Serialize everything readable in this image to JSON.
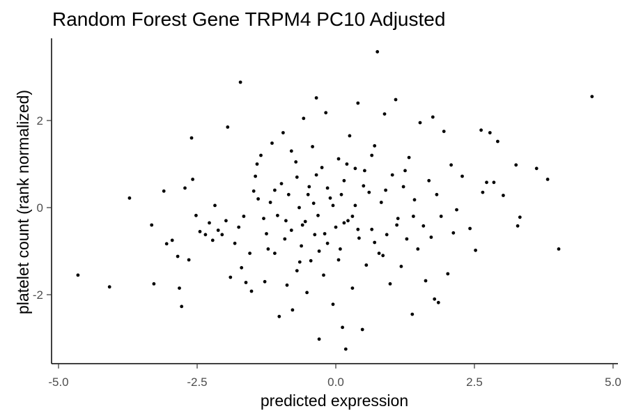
{
  "chart_data": {
    "type": "scatter",
    "title": "Random Forest Gene TRPM4 PC10 Adjusted",
    "xlabel": "predicted expression",
    "ylabel": "platelet count (rank normalized)",
    "xlim": [
      -5.0,
      5.0
    ],
    "ylim": [
      -3.6,
      3.8
    ],
    "x_ticks": [
      -5.0,
      -2.5,
      0.0,
      2.5,
      5.0
    ],
    "x_tick_labels": [
      "-5.0",
      "-2.5",
      "0.0",
      "2.5",
      "5.0"
    ],
    "y_ticks": [
      -2,
      0,
      2
    ],
    "y_tick_labels": [
      "-2",
      "0",
      "2"
    ],
    "grid": false,
    "point_color": "#000000",
    "series": [
      {
        "points": [
          [
            -4.65,
            -1.55
          ],
          [
            -4.08,
            -1.82
          ],
          [
            -3.72,
            0.22
          ],
          [
            -3.32,
            -0.4
          ],
          [
            -3.28,
            -1.75
          ],
          [
            -3.1,
            0.38
          ],
          [
            -3.05,
            -0.83
          ],
          [
            -2.95,
            -0.75
          ],
          [
            -2.85,
            -1.12
          ],
          [
            -2.82,
            -1.85
          ],
          [
            -2.78,
            -2.27
          ],
          [
            -2.72,
            0.45
          ],
          [
            -2.65,
            -1.2
          ],
          [
            -2.6,
            1.6
          ],
          [
            -2.58,
            0.65
          ],
          [
            -2.52,
            -0.18
          ],
          [
            -2.45,
            -0.55
          ],
          [
            -2.35,
            -0.62
          ],
          [
            -2.28,
            -0.35
          ],
          [
            -2.22,
            -0.75
          ],
          [
            -2.18,
            0.05
          ],
          [
            -2.12,
            -0.52
          ],
          [
            -2.05,
            -0.62
          ],
          [
            -1.98,
            -0.3
          ],
          [
            -1.95,
            1.85
          ],
          [
            -1.9,
            -1.6
          ],
          [
            -1.82,
            -0.82
          ],
          [
            -1.75,
            -0.45
          ],
          [
            -1.72,
            2.88
          ],
          [
            -1.7,
            -1.38
          ],
          [
            -1.66,
            -0.2
          ],
          [
            -1.62,
            -1.72
          ],
          [
            -1.55,
            -1.05
          ],
          [
            -1.52,
            -1.92
          ],
          [
            -1.48,
            0.38
          ],
          [
            -1.45,
            0.72
          ],
          [
            -1.42,
            1.0
          ],
          [
            -1.35,
            1.2
          ],
          [
            -1.3,
            -0.25
          ],
          [
            -1.28,
            -1.7
          ],
          [
            -1.22,
            -0.95
          ],
          [
            -1.18,
            0.12
          ],
          [
            -1.15,
            1.48
          ],
          [
            -1.1,
            -1.05
          ],
          [
            -1.05,
            -0.18
          ],
          [
            -1.02,
            -2.5
          ],
          [
            -0.98,
            0.55
          ],
          [
            -0.95,
            1.72
          ],
          [
            -0.92,
            -0.72
          ],
          [
            -0.88,
            -1.78
          ],
          [
            -0.85,
            0.3
          ],
          [
            -0.8,
            -0.52
          ],
          [
            -0.78,
            -2.35
          ],
          [
            -0.72,
            1.05
          ],
          [
            -0.7,
            -1.45
          ],
          [
            -0.66,
            0.0
          ],
          [
            -0.62,
            -0.88
          ],
          [
            -0.58,
            2.05
          ],
          [
            -0.55,
            -0.32
          ],
          [
            -0.52,
            -1.95
          ],
          [
            -0.48,
            0.48
          ],
          [
            -0.45,
            -1.22
          ],
          [
            -0.42,
            1.4
          ],
          [
            -0.38,
            -0.62
          ],
          [
            -0.35,
            2.52
          ],
          [
            -0.32,
            -0.18
          ],
          [
            -0.3,
            -3.02
          ],
          [
            -0.25,
            0.92
          ],
          [
            -0.22,
            -1.55
          ],
          [
            -0.18,
            2.18
          ],
          [
            -0.15,
            -0.82
          ],
          [
            -0.1,
            0.22
          ],
          [
            -0.05,
            -2.22
          ],
          [
            0.0,
            -0.45
          ],
          [
            0.05,
            1.12
          ],
          [
            0.08,
            -0.95
          ],
          [
            0.12,
            -2.75
          ],
          [
            0.15,
            0.62
          ],
          [
            0.18,
            -3.25
          ],
          [
            0.22,
            -0.3
          ],
          [
            0.25,
            1.65
          ],
          [
            0.3,
            -1.85
          ],
          [
            0.35,
            0.05
          ],
          [
            0.4,
            2.4
          ],
          [
            0.42,
            -0.7
          ],
          [
            0.48,
            -2.8
          ],
          [
            0.52,
            0.85
          ],
          [
            0.55,
            -1.32
          ],
          [
            0.6,
            0.35
          ],
          [
            0.65,
            -0.5
          ],
          [
            0.7,
            1.42
          ],
          [
            0.75,
            3.58
          ],
          [
            0.78,
            -1.05
          ],
          [
            0.82,
            0.12
          ],
          [
            0.88,
            2.15
          ],
          [
            0.92,
            -0.62
          ],
          [
            0.98,
            -1.75
          ],
          [
            1.02,
            0.75
          ],
          [
            1.08,
            2.48
          ],
          [
            1.12,
            -0.25
          ],
          [
            1.18,
            -1.35
          ],
          [
            1.22,
            0.48
          ],
          [
            1.28,
            -0.72
          ],
          [
            1.32,
            1.15
          ],
          [
            1.38,
            -2.45
          ],
          [
            1.42,
            0.18
          ],
          [
            1.48,
            -0.95
          ],
          [
            1.52,
            1.95
          ],
          [
            1.58,
            -0.42
          ],
          [
            1.62,
            -1.68
          ],
          [
            1.68,
            0.62
          ],
          [
            1.72,
            -0.68
          ],
          [
            1.75,
            2.08
          ],
          [
            1.78,
            -2.1
          ],
          [
            1.82,
            0.3
          ],
          [
            1.85,
            -2.18
          ],
          [
            1.9,
            -0.2
          ],
          [
            1.95,
            1.75
          ],
          [
            2.02,
            -1.52
          ],
          [
            2.08,
            0.98
          ],
          [
            2.12,
            -0.58
          ],
          [
            2.18,
            -0.05
          ],
          [
            2.28,
            0.72
          ],
          [
            2.42,
            -0.48
          ],
          [
            2.52,
            -0.98
          ],
          [
            2.62,
            1.78
          ],
          [
            2.65,
            0.35
          ],
          [
            2.72,
            0.58
          ],
          [
            2.78,
            1.72
          ],
          [
            2.85,
            0.58
          ],
          [
            2.92,
            1.52
          ],
          [
            3.02,
            0.28
          ],
          [
            3.25,
            0.98
          ],
          [
            3.28,
            -0.42
          ],
          [
            3.32,
            -0.22
          ],
          [
            3.62,
            0.9
          ],
          [
            3.82,
            0.65
          ],
          [
            4.02,
            -0.95
          ],
          [
            4.62,
            2.55
          ],
          [
            -0.6,
            -0.4
          ],
          [
            -0.4,
            0.1
          ],
          [
            -0.2,
            -0.6
          ],
          [
            0.1,
            0.3
          ],
          [
            0.3,
            -0.2
          ],
          [
            0.5,
            0.5
          ],
          [
            -0.7,
            0.7
          ],
          [
            -0.9,
            -0.3
          ],
          [
            0.7,
            -0.8
          ],
          [
            0.9,
            0.4
          ],
          [
            -0.3,
            -1.0
          ],
          [
            0.2,
            1.0
          ],
          [
            -1.1,
            0.4
          ],
          [
            1.1,
            -0.4
          ],
          [
            -0.5,
            0.3
          ],
          [
            0.4,
            -0.5
          ],
          [
            -0.15,
            0.45
          ],
          [
            0.05,
            -1.2
          ],
          [
            -0.8,
            1.3
          ],
          [
            0.85,
            -1.1
          ],
          [
            -1.25,
            -0.6
          ],
          [
            1.25,
            0.85
          ],
          [
            -0.35,
            0.75
          ],
          [
            0.35,
            0.9
          ],
          [
            -0.65,
            -1.25
          ],
          [
            0.65,
            1.2
          ],
          [
            -1.4,
            0.2
          ],
          [
            1.4,
            -0.2
          ],
          [
            -0.05,
            0.05
          ],
          [
            0.15,
            -0.35
          ]
        ]
      }
    ]
  }
}
